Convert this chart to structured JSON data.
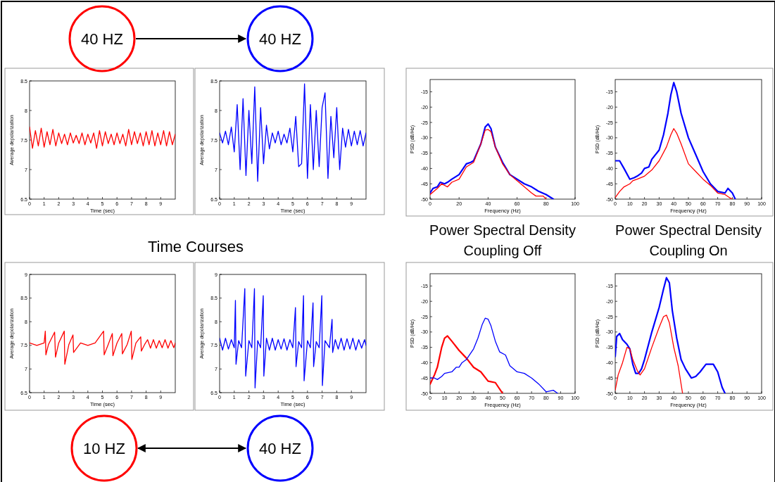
{
  "chart_data": [
    {
      "type": "line",
      "xlabel": "Time (sec)",
      "ylabel": "Average depolarization",
      "annotations": [
        "40 HZ"
      ],
      "xlim": [
        0,
        10
      ],
      "xticks": [
        0,
        1,
        2,
        3,
        4,
        5,
        6,
        7,
        8,
        9
      ],
      "ylim": [
        6.5,
        8.5
      ],
      "yticks": [
        6.5,
        7,
        7.5,
        8,
        8.5
      ],
      "x": [
        0,
        0.2,
        0.4,
        0.6,
        0.8,
        1,
        1.2,
        1.4,
        1.6,
        1.8,
        2,
        2.2,
        2.4,
        2.6,
        2.8,
        3,
        3.2,
        3.4,
        3.6,
        3.8,
        4,
        4.2,
        4.4,
        4.6,
        4.8,
        5,
        5.2,
        5.4,
        5.6,
        5.8,
        6,
        6.2,
        6.4,
        6.6,
        6.8,
        7,
        7.2,
        7.4,
        7.6,
        7.8,
        8,
        8.2,
        8.4,
        8.6,
        8.8,
        9,
        9.2,
        9.4,
        9.6,
        9.8,
        10
      ],
      "series": [
        {
          "color": "#ff0000",
          "values": [
            7.72,
            7.36,
            7.66,
            7.4,
            7.7,
            7.38,
            7.64,
            7.42,
            7.68,
            7.4,
            7.62,
            7.44,
            7.6,
            7.42,
            7.62,
            7.45,
            7.58,
            7.44,
            7.62,
            7.42,
            7.6,
            7.45,
            7.62,
            7.36,
            7.66,
            7.4,
            7.64,
            7.44,
            7.6,
            7.42,
            7.62,
            7.44,
            7.6,
            7.4,
            7.68,
            7.42,
            7.64,
            7.44,
            7.62,
            7.4,
            7.64,
            7.42,
            7.66,
            7.4,
            7.62,
            7.42,
            7.66,
            7.4,
            7.64,
            7.42,
            7.6
          ]
        }
      ]
    },
    {
      "type": "line",
      "xlabel": "Time (sec)",
      "ylabel": "Average depolarization",
      "annotations": [
        "40 HZ"
      ],
      "xlim": [
        0,
        10
      ],
      "xticks": [
        0,
        1,
        2,
        3,
        4,
        5,
        6,
        7,
        8,
        9
      ],
      "ylim": [
        6.5,
        8.5
      ],
      "yticks": [
        6.5,
        7,
        7.5,
        8,
        8.5
      ],
      "x": [
        0,
        0.2,
        0.4,
        0.6,
        0.8,
        1,
        1.2,
        1.4,
        1.6,
        1.8,
        2,
        2.2,
        2.4,
        2.6,
        2.8,
        3,
        3.2,
        3.4,
        3.6,
        3.8,
        4,
        4.2,
        4.4,
        4.6,
        4.8,
        5,
        5.2,
        5.4,
        5.6,
        5.8,
        6,
        6.2,
        6.4,
        6.6,
        6.8,
        7,
        7.2,
        7.4,
        7.6,
        7.8,
        8,
        8.2,
        8.4,
        8.6,
        8.8,
        9,
        9.2,
        9.4,
        9.6,
        9.8,
        10
      ],
      "series": [
        {
          "color": "#0000ff",
          "values": [
            7.62,
            7.45,
            7.65,
            7.42,
            7.72,
            7.3,
            8.1,
            7.0,
            8.2,
            6.9,
            8.0,
            7.1,
            8.4,
            6.8,
            8.05,
            7.1,
            7.75,
            7.35,
            7.62,
            7.45,
            7.65,
            7.42,
            7.6,
            7.45,
            7.7,
            7.3,
            7.9,
            7.05,
            7.1,
            8.45,
            6.85,
            8.1,
            7.0,
            8.0,
            7.05,
            8.05,
            8.3,
            6.85,
            7.9,
            7.2,
            8.05,
            7.0,
            7.7,
            7.38,
            7.68,
            7.4,
            7.65,
            7.42,
            7.66,
            7.4,
            7.62
          ]
        }
      ]
    },
    {
      "type": "line",
      "xlabel": "Frequency (Hz)",
      "ylabel": "PSD (dB/Hz)",
      "xlim": [
        0,
        100
      ],
      "xticks": [
        0,
        20,
        40,
        60,
        80,
        100
      ],
      "ylim": [
        -50,
        -11
      ],
      "yticks": [
        -50,
        -45,
        -40,
        -35,
        -30,
        -25,
        -20,
        -15
      ],
      "series": [
        {
          "color": "#0000ff",
          "x": [
            0,
            2,
            5,
            7,
            10,
            12,
            15,
            20,
            25,
            28,
            30,
            35,
            38,
            40,
            42,
            45,
            50,
            55,
            60,
            65,
            70,
            75,
            80,
            85
          ],
          "values": [
            -48,
            -46.5,
            -46,
            -44.5,
            -45,
            -44.5,
            -43.5,
            -42,
            -38.5,
            -38,
            -37.5,
            -32,
            -26.5,
            -25.5,
            -27,
            -33,
            -38,
            -42,
            -43.5,
            -45,
            -46,
            -47.5,
            -48.5,
            -50
          ]
        },
        {
          "color": "#ff0000",
          "x": [
            0,
            5,
            8,
            12,
            15,
            20,
            25,
            30,
            35,
            38,
            40,
            42,
            45,
            50,
            55,
            60,
            65,
            70,
            73,
            78,
            80
          ],
          "values": [
            -48.5,
            -46.5,
            -45,
            -46,
            -44.5,
            -43.5,
            -39.5,
            -38,
            -32,
            -27.5,
            -27.3,
            -28,
            -33,
            -38.5,
            -42,
            -44,
            -46,
            -48,
            -49,
            -49,
            -50
          ]
        }
      ]
    },
    {
      "type": "line",
      "xlabel": "Frequency (Hz)",
      "ylabel": "PSD (dB/Hz)",
      "xlim": [
        0,
        100
      ],
      "xticks": [
        0,
        10,
        20,
        30,
        40,
        50,
        60,
        70,
        80,
        90,
        100
      ],
      "ylim": [
        -50,
        -11
      ],
      "yticks": [
        -50,
        -45,
        -40,
        -35,
        -30,
        -25,
        -20,
        -15
      ],
      "series": [
        {
          "color": "#0000ff",
          "x": [
            0,
            3,
            6,
            10,
            13,
            15,
            18,
            20,
            23,
            25,
            30,
            33,
            36,
            38,
            40,
            42,
            45,
            50,
            55,
            60,
            65,
            70,
            75,
            77,
            80,
            82
          ],
          "values": [
            -37.5,
            -37.5,
            -40,
            -43.5,
            -43,
            -42.5,
            -41.5,
            -40,
            -39.5,
            -37,
            -34,
            -29,
            -22,
            -16,
            -12,
            -15,
            -22,
            -30,
            -35.5,
            -41,
            -45,
            -47.5,
            -48,
            -46.5,
            -48,
            -50
          ]
        },
        {
          "color": "#ff0000",
          "x": [
            0,
            3,
            6,
            10,
            12,
            15,
            20,
            25,
            30,
            35,
            38,
            40,
            42,
            45,
            50,
            55,
            60,
            65,
            70,
            75,
            78,
            80
          ],
          "values": [
            -49.5,
            -47.5,
            -46,
            -45,
            -44,
            -43.5,
            -42.5,
            -40.5,
            -37.5,
            -33,
            -29,
            -27,
            -28.5,
            -32,
            -38.5,
            -41,
            -43.5,
            -45.5,
            -48,
            -48.5,
            -49.5,
            -50
          ]
        }
      ]
    },
    {
      "type": "line",
      "xlabel": "Time (sec)",
      "ylabel": "Average depolarization",
      "annotations": [
        "Time Courses",
        "10 HZ"
      ],
      "xlim": [
        0,
        10
      ],
      "xticks": [
        0,
        1,
        2,
        3,
        4,
        5,
        6,
        7,
        8,
        9
      ],
      "ylim": [
        6.5,
        9
      ],
      "yticks": [
        6.5,
        7,
        7.5,
        8,
        8.5,
        9
      ],
      "series": [
        {
          "color": "#ff0000",
          "x": [
            0,
            0.5,
            1.0,
            1.08,
            1.12,
            1.3,
            1.72,
            1.78,
            2.0,
            2.38,
            2.42,
            2.7,
            2.98,
            3.02,
            3.5,
            4.0,
            4.5,
            5.08,
            5.12,
            5.4,
            5.68,
            5.72,
            6.0,
            6.33,
            6.37,
            6.7,
            6.98,
            7.02,
            7.3,
            7.63,
            7.67,
            7.9,
            8.1,
            8.3,
            8.5,
            8.7,
            8.9,
            9.1,
            9.3,
            9.5,
            9.7,
            9.9,
            10
          ],
          "values": [
            7.55,
            7.5,
            7.55,
            7.8,
            7.3,
            7.52,
            7.78,
            7.25,
            7.55,
            7.8,
            7.1,
            7.52,
            7.72,
            7.35,
            7.55,
            7.5,
            7.55,
            7.8,
            7.3,
            7.52,
            7.75,
            7.28,
            7.55,
            7.75,
            7.32,
            7.52,
            7.8,
            7.2,
            7.55,
            7.68,
            7.38,
            7.52,
            7.62,
            7.44,
            7.62,
            7.44,
            7.6,
            7.45,
            7.62,
            7.44,
            7.6,
            7.45,
            7.55
          ]
        }
      ]
    },
    {
      "type": "line",
      "xlabel": "Time (sec)",
      "ylabel": "Average depolarization",
      "annotations": [
        "40 HZ"
      ],
      "xlim": [
        0,
        10
      ],
      "xticks": [
        0,
        1,
        2,
        3,
        4,
        5,
        6,
        7,
        8,
        9
      ],
      "ylim": [
        6.5,
        9
      ],
      "yticks": [
        6.5,
        7,
        7.5,
        8,
        8.5,
        9
      ],
      "series": [
        {
          "color": "#0000ff",
          "x": [
            0,
            0.2,
            0.4,
            0.6,
            0.8,
            1.0,
            1.08,
            1.12,
            1.3,
            1.5,
            1.72,
            1.78,
            2.0,
            2.2,
            2.38,
            2.42,
            2.6,
            2.8,
            2.98,
            3.02,
            3.2,
            3.4,
            3.6,
            3.8,
            4.0,
            4.2,
            4.4,
            4.6,
            4.8,
            5.0,
            5.18,
            5.22,
            5.4,
            5.6,
            5.73,
            5.77,
            6.0,
            6.2,
            6.38,
            6.42,
            6.6,
            6.8,
            6.98,
            7.02,
            7.2,
            7.5,
            7.68,
            7.72,
            7.9,
            8.1,
            8.3,
            8.5,
            8.7,
            8.9,
            9.1,
            9.3,
            9.5,
            9.7,
            9.9,
            10
          ],
          "values": [
            7.65,
            7.4,
            7.65,
            7.42,
            7.62,
            7.45,
            8.45,
            7.1,
            7.6,
            7.45,
            8.7,
            6.85,
            7.6,
            7.45,
            8.7,
            6.6,
            7.6,
            7.45,
            8.55,
            6.85,
            7.65,
            7.4,
            7.65,
            7.4,
            7.62,
            7.42,
            7.64,
            7.4,
            7.62,
            7.45,
            8.3,
            7.05,
            7.58,
            7.45,
            8.55,
            6.75,
            7.6,
            7.45,
            8.4,
            7.05,
            7.58,
            7.45,
            8.55,
            6.65,
            7.6,
            7.45,
            8.05,
            7.35,
            7.62,
            7.42,
            7.65,
            7.4,
            7.64,
            7.42,
            7.65,
            7.4,
            7.62,
            7.44,
            7.62,
            7.5
          ]
        }
      ]
    },
    {
      "type": "line",
      "title": "Power Spectral Density",
      "subtitle": "Coupling Off",
      "xlabel": "Frequency (Hz)",
      "ylabel": "PSD (dB/Hz)",
      "xlim": [
        0,
        100
      ],
      "xticks": [
        0,
        10,
        20,
        30,
        40,
        50,
        60,
        70,
        80,
        90,
        100
      ],
      "ylim": [
        -50,
        -11
      ],
      "yticks": [
        -50,
        -45,
        -40,
        -35,
        -30,
        -25,
        -20,
        -15
      ],
      "series": [
        {
          "color": "#ff0000",
          "x": [
            0,
            3,
            5,
            8,
            10,
            12,
            15,
            20,
            25,
            30,
            35,
            40,
            45,
            50
          ],
          "values": [
            -47,
            -44,
            -41.5,
            -35,
            -32,
            -31.3,
            -33,
            -36,
            -38.5,
            -41.5,
            -43,
            -46,
            -46.5,
            -50
          ]
        },
        {
          "color": "#0000ff",
          "x": [
            0,
            3,
            5,
            8,
            10,
            15,
            18,
            20,
            22,
            25,
            30,
            33,
            36,
            38,
            40,
            42,
            45,
            48,
            52,
            55,
            60,
            65,
            70,
            75,
            80,
            85,
            88
          ],
          "values": [
            -45,
            -45,
            -45.5,
            -44.5,
            -43.5,
            -43,
            -41.5,
            -41.5,
            -40,
            -39,
            -35.5,
            -32,
            -27.5,
            -25.5,
            -25.8,
            -28,
            -33,
            -36.5,
            -37.5,
            -41,
            -43,
            -43.5,
            -45,
            -47,
            -49.5,
            -49,
            -50
          ]
        }
      ]
    },
    {
      "type": "line",
      "title": "Power Spectral Density",
      "subtitle": "Coupling On",
      "xlabel": "Frequency (Hz)",
      "ylabel": "PSD (dB/Hz)",
      "xlim": [
        0,
        100
      ],
      "xticks": [
        0,
        10,
        20,
        30,
        40,
        50,
        60,
        70,
        80,
        90,
        100
      ],
      "ylim": [
        -50,
        -11
      ],
      "yticks": [
        -50,
        -45,
        -40,
        -35,
        -30,
        -25,
        -20,
        -15
      ],
      "series": [
        {
          "color": "#0000ff",
          "x": [
            0,
            1,
            3,
            5,
            8,
            10,
            12,
            14,
            16,
            18,
            20,
            25,
            30,
            33,
            35,
            37,
            39,
            42,
            45,
            48,
            52,
            55,
            58,
            62,
            67,
            70,
            73,
            75
          ],
          "values": [
            -38,
            -31.5,
            -30.5,
            -32.5,
            -34,
            -35.5,
            -40.5,
            -43.5,
            -43.5,
            -42,
            -39,
            -30,
            -22,
            -16,
            -12.3,
            -14,
            -23,
            -32,
            -39,
            -42,
            -45,
            -44.5,
            -43,
            -40.5,
            -40.5,
            -43,
            -48,
            -50
          ]
        },
        {
          "color": "#ff0000",
          "x": [
            0,
            2,
            5,
            8,
            10,
            12,
            15,
            17,
            20,
            25,
            30,
            33,
            35,
            37,
            40,
            43,
            46
          ],
          "values": [
            -49,
            -44,
            -40,
            -35,
            -35.5,
            -39,
            -42.5,
            -44,
            -42,
            -35,
            -28.5,
            -25,
            -24.5,
            -27,
            -35,
            -41,
            -50
          ]
        }
      ]
    }
  ]
}
